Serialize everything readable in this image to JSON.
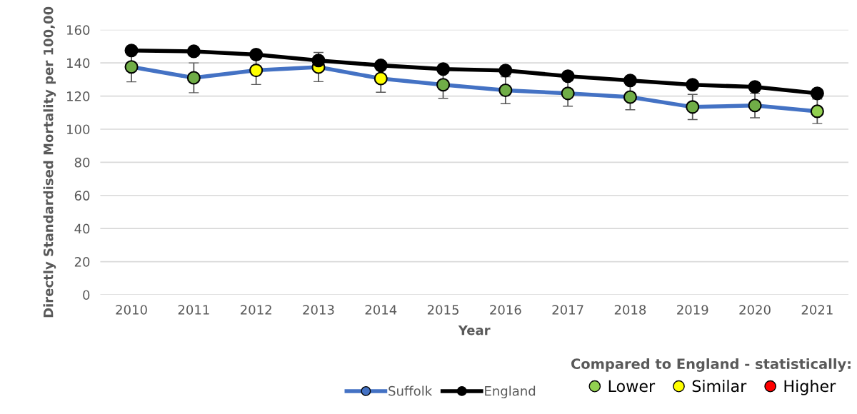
{
  "chart_data": {
    "type": "line",
    "xlabel": "Year",
    "ylabel": "Directly Standardised Mortality per 100,00",
    "categories": [
      "2010",
      "2011",
      "2012",
      "2013",
      "2014",
      "2015",
      "2016",
      "2017",
      "2018",
      "2019",
      "2020",
      "2021"
    ],
    "ylim": [
      0,
      160
    ],
    "yticks": [
      0,
      20,
      40,
      60,
      80,
      100,
      120,
      140,
      160
    ],
    "grid": "y",
    "marker": "circle",
    "line_style": "solid",
    "legend": "bottom",
    "legend_title": "Compared to England - statistically:",
    "series": [
      {
        "name": "Suffolk",
        "color": "#4472c4",
        "values": [
          137.6,
          131,
          135.5,
          137.5,
          130.6,
          126.8,
          123.5,
          121.6,
          119.4,
          113.4,
          114.3,
          110.8
        ],
        "errors": [
          9,
          9,
          8.5,
          8.8,
          8.3,
          8.2,
          8.1,
          7.7,
          7.7,
          7.6,
          7.4,
          7.4
        ],
        "colors": [
          "#70ad47",
          "#70ad47",
          "#ffff00",
          "#ffff00",
          "#ffff00",
          "#70ad47",
          "#70ad47",
          "#70ad47",
          "#70ad47",
          "#70ad47",
          "#70ad47",
          "#92d050"
        ]
      },
      {
        "name": "England",
        "color": "#000000",
        "values": [
          147.5,
          147,
          145,
          141.5,
          138.5,
          136.3,
          135.4,
          132,
          129.4,
          126.8,
          125.5,
          121.6
        ]
      },
      {
        "name": "Lower",
        "type": "scatter",
        "color": "#92d050",
        "values": [
          null,
          null,
          null,
          null,
          null,
          null,
          null,
          null,
          null,
          null,
          null,
          null
        ]
      },
      {
        "name": "Similar",
        "type": "scatter",
        "color": "#ffff00",
        "values": [
          null,
          null,
          null,
          null,
          null,
          null,
          null,
          null,
          null,
          null,
          null,
          null
        ]
      },
      {
        "name": "Higher",
        "type": "scatter",
        "color": "#ff0000",
        "values": [
          null,
          null,
          null,
          null,
          null,
          null,
          null,
          null,
          null,
          null,
          null,
          null
        ]
      }
    ]
  }
}
